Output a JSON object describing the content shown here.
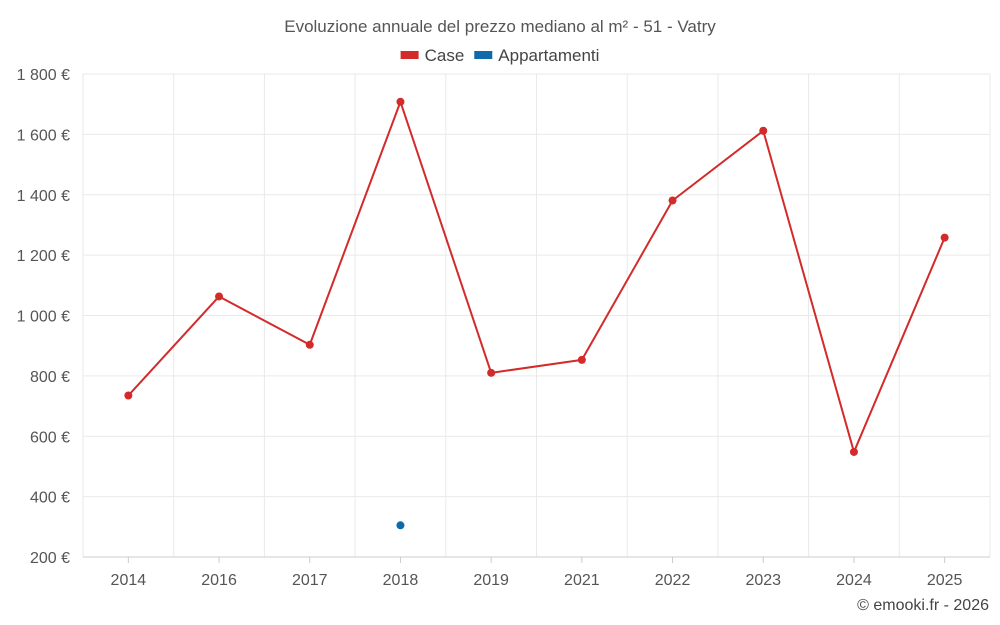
{
  "chart_data": {
    "type": "line",
    "title": "Evoluzione annuale del prezzo mediano al m² - 51 - Vatry",
    "categories": [
      "2014",
      "2016",
      "2017",
      "2018",
      "2019",
      "2021",
      "2022",
      "2023",
      "2024",
      "2025"
    ],
    "series": [
      {
        "name": "Case",
        "color": "#d32a2a",
        "values": [
          735,
          1063,
          903,
          1708,
          810,
          853,
          1381,
          1612,
          548,
          1258
        ]
      },
      {
        "name": "Appartamenti",
        "color": "#0e6aa8",
        "values": [
          null,
          null,
          null,
          305,
          null,
          null,
          null,
          null,
          null,
          null
        ]
      }
    ],
    "ylim": [
      200,
      1800
    ],
    "yticks": [
      200,
      400,
      600,
      800,
      1000,
      1200,
      1400,
      1600,
      1800
    ],
    "ytick_labels": [
      "200 €",
      "400 €",
      "600 €",
      "800 €",
      "1 000 €",
      "1 200 €",
      "1 400 €",
      "1 600 €",
      "1 800 €"
    ],
    "legend_position": "top",
    "grid": true
  },
  "credit": "© emooki.fr - 2026"
}
